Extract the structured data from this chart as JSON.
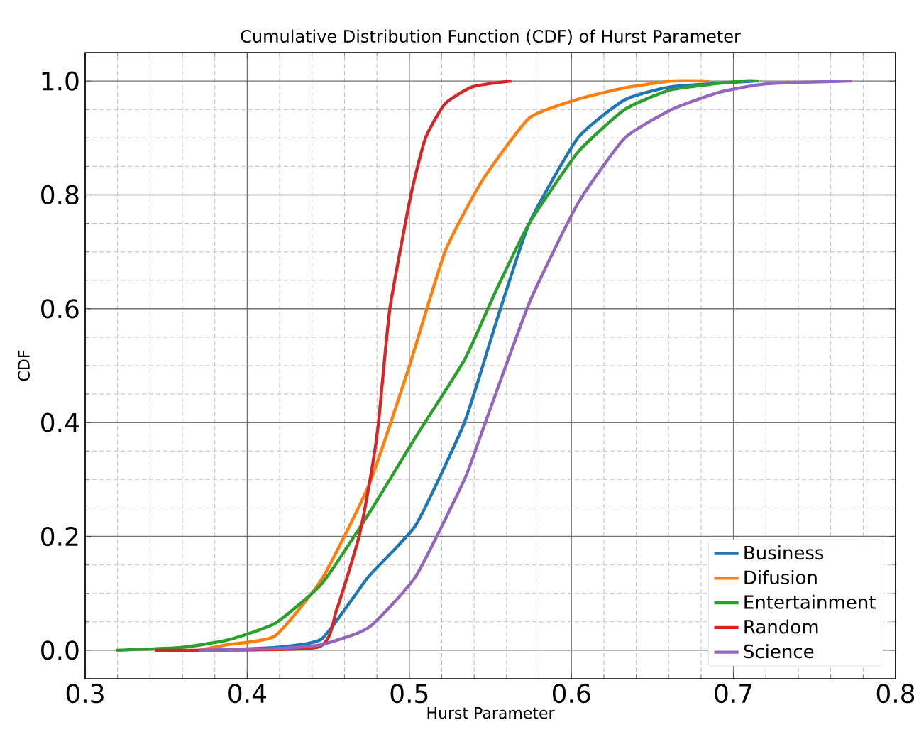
{
  "chart_data": {
    "type": "line",
    "title": "Cumulative Distribution Function (CDF) of Hurst Parameter",
    "xlabel": "Hurst Parameter",
    "ylabel": "CDF",
    "xlim": [
      0.3,
      0.8
    ],
    "xticks": [
      0.3,
      0.4,
      0.5,
      0.6,
      0.7,
      0.8
    ],
    "ylim": [
      -0.05,
      1.05
    ],
    "yticks": [
      {
        "value": 0,
        "label": "0.0"
      },
      0.2,
      0.4,
      0.6,
      0.8,
      {
        "value": 1,
        "label": "1.0"
      }
    ],
    "grid": true,
    "legend": "bottom right",
    "marker": "none",
    "line_style": "solid",
    "series": [
      {
        "name": "Business",
        "color": "#1f77b4",
        "x": [
          0.37,
          0.417,
          0.446,
          0.475,
          0.504,
          0.534,
          0.554,
          0.574,
          0.604,
          0.633,
          0.662,
          0.714
        ],
        "values": [
          0,
          0.005,
          0.02,
          0.13,
          0.22,
          0.4,
          0.58,
          0.75,
          0.9,
          0.967,
          0.99,
          1.0
        ]
      },
      {
        "name": "Difusion",
        "color": "#ff7f0e",
        "x": [
          0.37,
          0.388,
          0.417,
          0.446,
          0.475,
          0.499,
          0.522,
          0.545,
          0.574,
          0.604,
          0.633,
          0.662,
          0.685
        ],
        "values": [
          0,
          0.01,
          0.025,
          0.125,
          0.29,
          0.49,
          0.7,
          0.825,
          0.935,
          0.968,
          0.988,
          1.0,
          1.0
        ]
      },
      {
        "name": "Entertainment",
        "color": "#2ca02c",
        "x": [
          0.319,
          0.359,
          0.388,
          0.417,
          0.446,
          0.475,
          0.504,
          0.534,
          0.554,
          0.574,
          0.604,
          0.633,
          0.662,
          0.705,
          0.716
        ],
        "values": [
          0,
          0.005,
          0.018,
          0.047,
          0.117,
          0.24,
          0.375,
          0.51,
          0.635,
          0.75,
          0.875,
          0.95,
          0.985,
          1.0,
          1.0
        ]
      },
      {
        "name": "Random",
        "color": "#d62728",
        "x": [
          0.343,
          0.443,
          0.455,
          0.469,
          0.477,
          0.481,
          0.488,
          0.501,
          0.51,
          0.522,
          0.539,
          0.563
        ],
        "values": [
          0,
          0.005,
          0.07,
          0.2,
          0.32,
          0.4,
          0.6,
          0.8,
          0.9,
          0.96,
          0.99,
          1.0
        ]
      },
      {
        "name": "Science",
        "color": "#9467bd",
        "x": [
          0.37,
          0.417,
          0.446,
          0.475,
          0.504,
          0.534,
          0.545,
          0.574,
          0.604,
          0.633,
          0.662,
          0.691,
          0.72,
          0.773
        ],
        "values": [
          0,
          0.003,
          0.01,
          0.04,
          0.13,
          0.3,
          0.385,
          0.61,
          0.785,
          0.9,
          0.95,
          0.98,
          0.995,
          1.0
        ]
      }
    ]
  }
}
